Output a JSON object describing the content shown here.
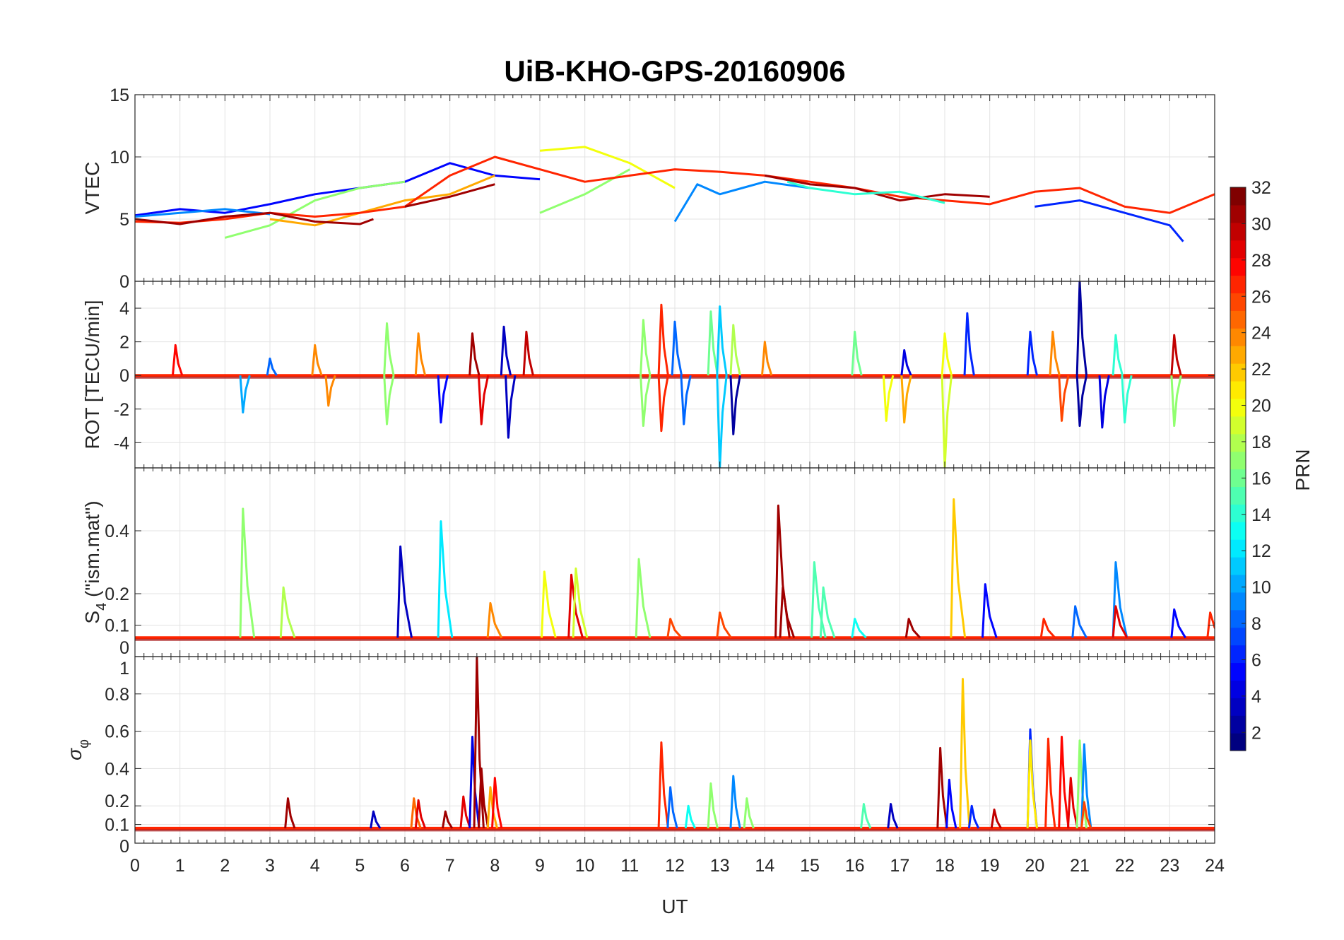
{
  "chart_data": {
    "type": "line",
    "title": "UiB-KHO-GPS-20160906",
    "xlabel": "UT",
    "xlim": [
      0,
      24
    ],
    "xticks": [
      0,
      1,
      2,
      3,
      4,
      5,
      6,
      7,
      8,
      9,
      10,
      11,
      12,
      13,
      14,
      15,
      16,
      17,
      18,
      19,
      20,
      21,
      22,
      23,
      24
    ],
    "grid": true,
    "colorbar": {
      "label": "PRN",
      "range": [
        1,
        32
      ],
      "colormap": "jet",
      "ticks": [
        2,
        4,
        6,
        8,
        10,
        12,
        14,
        16,
        18,
        20,
        22,
        24,
        26,
        28,
        30,
        32
      ],
      "placement": "right"
    },
    "panels": [
      {
        "id": "vtec",
        "ylabel": "VTEC",
        "ylim": [
          0,
          15
        ],
        "yticks": [
          0,
          5,
          10,
          15
        ],
        "series": [
          {
            "prn": 5,
            "x": [
              0,
              1,
              2,
              3,
              4,
              5,
              6,
              7,
              8,
              9
            ],
            "y": [
              5.3,
              5.8,
              5.5,
              6.2,
              7.0,
              7.5,
              8.0,
              9.5,
              8.5,
              8.2
            ]
          },
          {
            "prn": 9,
            "x": [
              0,
              1,
              2,
              3
            ],
            "y": [
              5.2,
              5.5,
              5.8,
              5.4
            ]
          },
          {
            "prn": 9,
            "x": [
              12,
              12.5,
              13,
              13.5,
              14,
              15
            ],
            "y": [
              4.8,
              7.8,
              7.0,
              7.5,
              8.0,
              7.5
            ]
          },
          {
            "prn": 17,
            "x": [
              2,
              3,
              4,
              5,
              6
            ],
            "y": [
              3.5,
              4.5,
              6.5,
              7.5,
              8.0
            ]
          },
          {
            "prn": 17,
            "x": [
              9,
              10,
              11
            ],
            "y": [
              5.5,
              7.0,
              9.0
            ]
          },
          {
            "prn": 20,
            "x": [
              9,
              10,
              11,
              12
            ],
            "y": [
              10.5,
              10.8,
              9.5,
              7.5
            ]
          },
          {
            "prn": 23,
            "x": [
              3,
              4,
              5,
              6,
              7,
              8
            ],
            "y": [
              5.0,
              4.5,
              5.5,
              6.5,
              7.0,
              8.5
            ]
          },
          {
            "prn": 27,
            "x": [
              0,
              1,
              2,
              3,
              4,
              5,
              6,
              7,
              8,
              9,
              10,
              11,
              12,
              13,
              14,
              15,
              16,
              17,
              18,
              19,
              20,
              21,
              22,
              23,
              24
            ],
            "y": [
              4.8,
              4.7,
              5.0,
              5.5,
              5.2,
              5.5,
              6.0,
              8.5,
              10.0,
              9.0,
              8.0,
              8.5,
              9.0,
              8.8,
              8.5,
              8.0,
              7.5,
              6.8,
              6.5,
              6.2,
              7.2,
              7.5,
              6.0,
              5.5,
              7.0
            ]
          },
          {
            "prn": 31,
            "x": [
              0,
              1,
              2,
              3,
              4,
              5,
              5.3
            ],
            "y": [
              5.0,
              4.6,
              5.2,
              5.5,
              4.8,
              4.6,
              5.0
            ]
          },
          {
            "prn": 31,
            "x": [
              6,
              7,
              8
            ],
            "y": [
              6.0,
              6.8,
              7.8
            ]
          },
          {
            "prn": 31,
            "x": [
              14,
              15,
              16,
              17,
              18,
              19
            ],
            "y": [
              8.5,
              7.8,
              7.5,
              6.5,
              7.0,
              6.8
            ]
          },
          {
            "prn": 14,
            "x": [
              14.5,
              15,
              16,
              17,
              18
            ],
            "y": [
              8.0,
              7.5,
              7.0,
              7.2,
              6.3
            ]
          },
          {
            "prn": 6,
            "x": [
              20,
              21,
              22,
              23,
              23.3
            ],
            "y": [
              6.0,
              6.5,
              5.5,
              4.5,
              3.2
            ]
          }
        ]
      },
      {
        "id": "rot",
        "ylabel": "ROT [TECU/min]",
        "ylim": [
          -5.5,
          5.6
        ],
        "yticks": [
          -4,
          -2,
          0,
          2,
          4
        ],
        "spikes": [
          [
            0.9,
            1.8,
            28
          ],
          [
            2.4,
            -2.2,
            10
          ],
          [
            3.0,
            1.0,
            8
          ],
          [
            4.0,
            1.8,
            24
          ],
          [
            4.3,
            -1.8,
            24
          ],
          [
            5.6,
            3.1,
            17
          ],
          [
            5.6,
            -2.9,
            17
          ],
          [
            6.3,
            2.5,
            24
          ],
          [
            6.8,
            -2.8,
            5
          ],
          [
            7.5,
            2.5,
            31
          ],
          [
            7.7,
            -2.9,
            29
          ],
          [
            8.2,
            2.9,
            3
          ],
          [
            8.3,
            -3.7,
            3
          ],
          [
            8.7,
            2.6,
            30
          ],
          [
            11.3,
            3.3,
            17
          ],
          [
            11.3,
            -3.0,
            17
          ],
          [
            11.7,
            4.2,
            27
          ],
          [
            11.7,
            -3.3,
            27
          ],
          [
            12.0,
            3.2,
            8
          ],
          [
            12.2,
            -2.9,
            8
          ],
          [
            12.8,
            3.8,
            16
          ],
          [
            13.0,
            4.1,
            11
          ],
          [
            13.0,
            -5.5,
            11
          ],
          [
            13.3,
            3.0,
            18
          ],
          [
            13.3,
            -3.5,
            2
          ],
          [
            14.0,
            2.0,
            24
          ],
          [
            16.0,
            2.6,
            16
          ],
          [
            16.7,
            -2.7,
            20
          ],
          [
            17.1,
            1.5,
            4
          ],
          [
            17.1,
            -2.8,
            23
          ],
          [
            18.0,
            2.5,
            20
          ],
          [
            18.0,
            -5.5,
            19
          ],
          [
            18.5,
            3.7,
            6
          ],
          [
            19.9,
            2.6,
            6
          ],
          [
            20.4,
            2.6,
            24
          ],
          [
            20.6,
            -2.7,
            26
          ],
          [
            21.0,
            5.6,
            2
          ],
          [
            21.0,
            -3.0,
            2
          ],
          [
            21.5,
            -3.1,
            4
          ],
          [
            21.8,
            2.4,
            14
          ],
          [
            22.0,
            -2.8,
            14
          ],
          [
            23.1,
            -3.0,
            17
          ],
          [
            23.1,
            2.4,
            30
          ]
        ],
        "baseline": 0
      },
      {
        "id": "s4",
        "ylabel_main": "S",
        "ylabel_sub": "4",
        "ylabel_rest": " (\"ism.mat\")",
        "ylim": [
          0,
          0.6
        ],
        "yticks": [
          0,
          0.1,
          0.2,
          0.4
        ],
        "baseline": 0.06,
        "spikes": [
          [
            2.4,
            0.47,
            17
          ],
          [
            3.3,
            0.22,
            18
          ],
          [
            5.9,
            0.35,
            3
          ],
          [
            6.8,
            0.43,
            12
          ],
          [
            7.9,
            0.17,
            24
          ],
          [
            9.1,
            0.27,
            20
          ],
          [
            9.7,
            0.26,
            29
          ],
          [
            9.8,
            0.28,
            19
          ],
          [
            11.2,
            0.31,
            17
          ],
          [
            11.9,
            0.12,
            26
          ],
          [
            13.0,
            0.14,
            26
          ],
          [
            14.3,
            0.48,
            31
          ],
          [
            14.4,
            0.22,
            31
          ],
          [
            15.1,
            0.3,
            15
          ],
          [
            15.3,
            0.22,
            15
          ],
          [
            16.0,
            0.12,
            13
          ],
          [
            17.2,
            0.12,
            31
          ],
          [
            18.2,
            0.5,
            22
          ],
          [
            18.9,
            0.23,
            5
          ],
          [
            20.2,
            0.12,
            27
          ],
          [
            20.9,
            0.16,
            8
          ],
          [
            21.8,
            0.3,
            9
          ],
          [
            21.8,
            0.16,
            29
          ],
          [
            23.1,
            0.15,
            5
          ],
          [
            23.9,
            0.14,
            27
          ]
        ]
      },
      {
        "id": "sigma_phi",
        "ylabel_main": "σ",
        "ylabel_sub": "φ",
        "ylim": [
          0,
          1
        ],
        "yticks": [
          0,
          0.1,
          0.2,
          0.4,
          0.6,
          0.8,
          1
        ],
        "baseline": 0.08,
        "spikes": [
          [
            3.4,
            0.24,
            31
          ],
          [
            5.3,
            0.17,
            3
          ],
          [
            6.2,
            0.24,
            25
          ],
          [
            6.3,
            0.23,
            29
          ],
          [
            6.9,
            0.17,
            31
          ],
          [
            7.3,
            0.25,
            29
          ],
          [
            7.5,
            0.57,
            4
          ],
          [
            7.6,
            1.0,
            31
          ],
          [
            7.7,
            0.4,
            31
          ],
          [
            7.9,
            0.3,
            23
          ],
          [
            8.0,
            0.35,
            28
          ],
          [
            11.7,
            0.54,
            27
          ],
          [
            11.9,
            0.3,
            8
          ],
          [
            12.3,
            0.2,
            13
          ],
          [
            12.8,
            0.32,
            17
          ],
          [
            13.3,
            0.36,
            9
          ],
          [
            13.6,
            0.24,
            17
          ],
          [
            16.2,
            0.21,
            15
          ],
          [
            16.8,
            0.21,
            3
          ],
          [
            17.9,
            0.51,
            31
          ],
          [
            18.1,
            0.34,
            5
          ],
          [
            18.4,
            0.88,
            22
          ],
          [
            18.6,
            0.2,
            6
          ],
          [
            19.1,
            0.18,
            30
          ],
          [
            19.9,
            0.61,
            6
          ],
          [
            19.9,
            0.55,
            21
          ],
          [
            20.3,
            0.56,
            27
          ],
          [
            20.6,
            0.57,
            28
          ],
          [
            20.8,
            0.35,
            29
          ],
          [
            21.0,
            0.55,
            17
          ],
          [
            21.1,
            0.53,
            9
          ],
          [
            21.1,
            0.22,
            26
          ]
        ]
      }
    ]
  }
}
